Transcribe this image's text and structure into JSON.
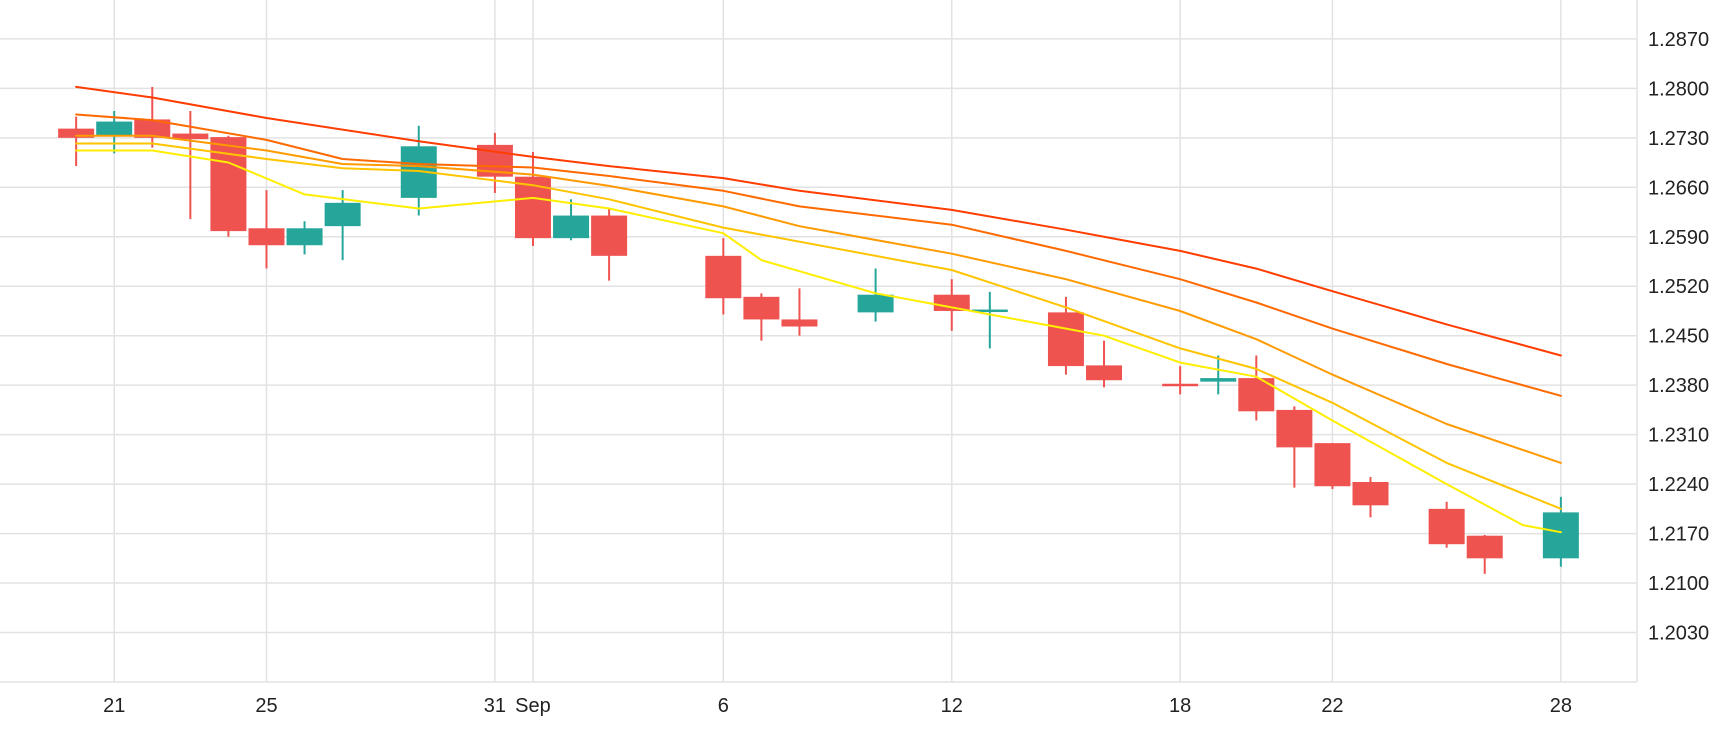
{
  "chart_data": {
    "type": "candlestick",
    "title": "",
    "xlabel": "",
    "ylabel": "",
    "ylim": [
      1.196,
      1.2925
    ],
    "xlim": [
      "2022-08-18",
      "2022-09-30"
    ],
    "y_ticks": [
      1.203,
      1.21,
      1.217,
      1.224,
      1.231,
      1.238,
      1.245,
      1.252,
      1.259,
      1.266,
      1.273,
      1.28,
      1.287
    ],
    "x_ticks": [
      {
        "date": "2022-08-21",
        "label": "21"
      },
      {
        "date": "2022-08-25",
        "label": "25"
      },
      {
        "date": "2022-08-31",
        "label": "31"
      },
      {
        "date": "2022-09-01",
        "label": "Sep"
      },
      {
        "date": "2022-09-06",
        "label": "6"
      },
      {
        "date": "2022-09-12",
        "label": "12"
      },
      {
        "date": "2022-09-18",
        "label": "18"
      },
      {
        "date": "2022-09-22",
        "label": "22"
      },
      {
        "date": "2022-09-28",
        "label": "28"
      }
    ],
    "grid": true,
    "colors": {
      "up": "#26a69a",
      "down": "#ef5350",
      "grid": "#e2e2e2",
      "axis_text": "#222222"
    },
    "candles": [
      {
        "date": "2022-08-20",
        "open": 1.2743,
        "high": 1.276,
        "low": 1.269,
        "close": 1.273
      },
      {
        "date": "2022-08-21",
        "open": 1.2733,
        "high": 1.2768,
        "low": 1.2708,
        "close": 1.2753
      },
      {
        "date": "2022-08-22",
        "open": 1.2756,
        "high": 1.2802,
        "low": 1.2716,
        "close": 1.273
      },
      {
        "date": "2022-08-23",
        "open": 1.2736,
        "high": 1.2768,
        "low": 1.2615,
        "close": 1.2728
      },
      {
        "date": "2022-08-24",
        "open": 1.2731,
        "high": 1.2733,
        "low": 1.259,
        "close": 1.2598
      },
      {
        "date": "2022-08-25",
        "open": 1.2602,
        "high": 1.2656,
        "low": 1.2545,
        "close": 1.2578
      },
      {
        "date": "2022-08-26",
        "open": 1.2578,
        "high": 1.2612,
        "low": 1.2565,
        "close": 1.2602
      },
      {
        "date": "2022-08-27",
        "open": 1.2605,
        "high": 1.2656,
        "low": 1.2557,
        "close": 1.2638
      },
      {
        "date": "2022-08-29",
        "open": 1.2645,
        "high": 1.2747,
        "low": 1.262,
        "close": 1.2718
      },
      {
        "date": "2022-08-31",
        "open": 1.272,
        "high": 1.2737,
        "low": 1.2652,
        "close": 1.2675
      },
      {
        "date": "2022-09-01",
        "open": 1.2675,
        "high": 1.271,
        "low": 1.2577,
        "close": 1.2588
      },
      {
        "date": "2022-09-02",
        "open": 1.2588,
        "high": 1.2643,
        "low": 1.2585,
        "close": 1.262
      },
      {
        "date": "2022-09-03",
        "open": 1.262,
        "high": 1.263,
        "low": 1.2528,
        "close": 1.2563
      },
      {
        "date": "2022-09-06",
        "open": 1.2563,
        "high": 1.2588,
        "low": 1.248,
        "close": 1.2503
      },
      {
        "date": "2022-09-07",
        "open": 1.2505,
        "high": 1.251,
        "low": 1.2443,
        "close": 1.2473
      },
      {
        "date": "2022-09-08",
        "open": 1.2473,
        "high": 1.2517,
        "low": 1.245,
        "close": 1.2463
      },
      {
        "date": "2022-09-10",
        "open": 1.2483,
        "high": 1.2545,
        "low": 1.247,
        "close": 1.2508
      },
      {
        "date": "2022-09-12",
        "open": 1.2508,
        "high": 1.253,
        "low": 1.2457,
        "close": 1.2485
      },
      {
        "date": "2022-09-13",
        "open": 1.2486,
        "high": 1.2512,
        "low": 1.2432,
        "close": 1.2487
      },
      {
        "date": "2022-09-15",
        "open": 1.2483,
        "high": 1.2505,
        "low": 1.2395,
        "close": 1.2407
      },
      {
        "date": "2022-09-16",
        "open": 1.2408,
        "high": 1.2443,
        "low": 1.2377,
        "close": 1.2387
      },
      {
        "date": "2022-09-18",
        "open": 1.2382,
        "high": 1.2407,
        "low": 1.2367,
        "close": 1.238
      },
      {
        "date": "2022-09-19",
        "open": 1.2385,
        "high": 1.2422,
        "low": 1.2367,
        "close": 1.239
      },
      {
        "date": "2022-09-20",
        "open": 1.239,
        "high": 1.2422,
        "low": 1.233,
        "close": 1.2343
      },
      {
        "date": "2022-09-21",
        "open": 1.2345,
        "high": 1.235,
        "low": 1.2235,
        "close": 1.2292
      },
      {
        "date": "2022-09-22",
        "open": 1.2298,
        "high": 1.2298,
        "low": 1.2233,
        "close": 1.2237
      },
      {
        "date": "2022-09-23",
        "open": 1.2243,
        "high": 1.225,
        "low": 1.2193,
        "close": 1.221
      },
      {
        "date": "2022-09-25",
        "open": 1.2205,
        "high": 1.2215,
        "low": 1.215,
        "close": 1.2155
      },
      {
        "date": "2022-09-26",
        "open": 1.2167,
        "high": 1.2168,
        "low": 1.2113,
        "close": 1.2135
      },
      {
        "date": "2022-09-28",
        "open": 1.2135,
        "high": 1.2222,
        "low": 1.2123,
        "close": 1.22
      }
    ],
    "lines": [
      {
        "color": "#ff3d00",
        "points": [
          [
            "2022-08-20",
            1.2802
          ],
          [
            "2022-08-22",
            1.2787
          ],
          [
            "2022-08-25",
            1.2758
          ],
          [
            "2022-08-29",
            1.2725
          ],
          [
            "2022-09-01",
            1.2703
          ],
          [
            "2022-09-03",
            1.269
          ],
          [
            "2022-09-06",
            1.2673
          ],
          [
            "2022-09-08",
            1.2655
          ],
          [
            "2022-09-12",
            1.2628
          ],
          [
            "2022-09-15",
            1.26
          ],
          [
            "2022-09-18",
            1.257
          ],
          [
            "2022-09-20",
            1.2545
          ],
          [
            "2022-09-22",
            1.2513
          ],
          [
            "2022-09-25",
            1.2466
          ],
          [
            "2022-09-28",
            1.2422
          ]
        ]
      },
      {
        "color": "#ff6a00",
        "points": [
          [
            "2022-08-20",
            1.2763
          ],
          [
            "2022-08-22",
            1.2755
          ],
          [
            "2022-08-25",
            1.2727
          ],
          [
            "2022-08-27",
            1.27
          ],
          [
            "2022-08-29",
            1.2693
          ],
          [
            "2022-09-01",
            1.2688
          ],
          [
            "2022-09-03",
            1.2676
          ],
          [
            "2022-09-06",
            1.2655
          ],
          [
            "2022-09-08",
            1.2633
          ],
          [
            "2022-09-12",
            1.2607
          ],
          [
            "2022-09-15",
            1.257
          ],
          [
            "2022-09-18",
            1.253
          ],
          [
            "2022-09-20",
            1.2497
          ],
          [
            "2022-09-22",
            1.246
          ],
          [
            "2022-09-25",
            1.241
          ],
          [
            "2022-09-28",
            1.2365
          ]
        ]
      },
      {
        "color": "#ff9a00",
        "points": [
          [
            "2022-08-20",
            1.2733
          ],
          [
            "2022-08-22",
            1.2733
          ],
          [
            "2022-08-25",
            1.2712
          ],
          [
            "2022-08-27",
            1.2693
          ],
          [
            "2022-08-29",
            1.269
          ],
          [
            "2022-09-01",
            1.2678
          ],
          [
            "2022-09-03",
            1.2662
          ],
          [
            "2022-09-06",
            1.2633
          ],
          [
            "2022-09-08",
            1.2605
          ],
          [
            "2022-09-12",
            1.2566
          ],
          [
            "2022-09-15",
            1.253
          ],
          [
            "2022-09-18",
            1.2485
          ],
          [
            "2022-09-20",
            1.2445
          ],
          [
            "2022-09-22",
            1.2395
          ],
          [
            "2022-09-25",
            1.2325
          ],
          [
            "2022-09-28",
            1.227
          ]
        ]
      },
      {
        "color": "#ffc400",
        "points": [
          [
            "2022-08-20",
            1.2722
          ],
          [
            "2022-08-22",
            1.2722
          ],
          [
            "2022-08-25",
            1.27
          ],
          [
            "2022-08-27",
            1.2687
          ],
          [
            "2022-08-29",
            1.2683
          ],
          [
            "2022-09-01",
            1.2663
          ],
          [
            "2022-09-03",
            1.2643
          ],
          [
            "2022-09-06",
            1.2603
          ],
          [
            "2022-09-08",
            1.2583
          ],
          [
            "2022-09-12",
            1.2543
          ],
          [
            "2022-09-15",
            1.249
          ],
          [
            "2022-09-18",
            1.2432
          ],
          [
            "2022-09-20",
            1.2403
          ],
          [
            "2022-09-22",
            1.2355
          ],
          [
            "2022-09-25",
            1.227
          ],
          [
            "2022-09-28",
            1.2205
          ]
        ]
      },
      {
        "color": "#ffee00",
        "points": [
          [
            "2022-08-20",
            1.2712
          ],
          [
            "2022-08-22",
            1.2712
          ],
          [
            "2022-08-24",
            1.2695
          ],
          [
            "2022-08-26",
            1.265
          ],
          [
            "2022-08-29",
            1.263
          ],
          [
            "2022-09-01",
            1.2645
          ],
          [
            "2022-09-03",
            1.263
          ],
          [
            "2022-09-06",
            1.2595
          ],
          [
            "2022-09-07",
            1.2557
          ],
          [
            "2022-09-10",
            1.251
          ],
          [
            "2022-09-12",
            1.249
          ],
          [
            "2022-09-15",
            1.246
          ],
          [
            "2022-09-16",
            1.245
          ],
          [
            "2022-09-18",
            1.2412
          ],
          [
            "2022-09-20",
            1.2392
          ],
          [
            "2022-09-22",
            1.233
          ],
          [
            "2022-09-25",
            1.224
          ],
          [
            "2022-09-27",
            1.2182
          ],
          [
            "2022-09-28",
            1.2172
          ]
        ]
      }
    ]
  }
}
